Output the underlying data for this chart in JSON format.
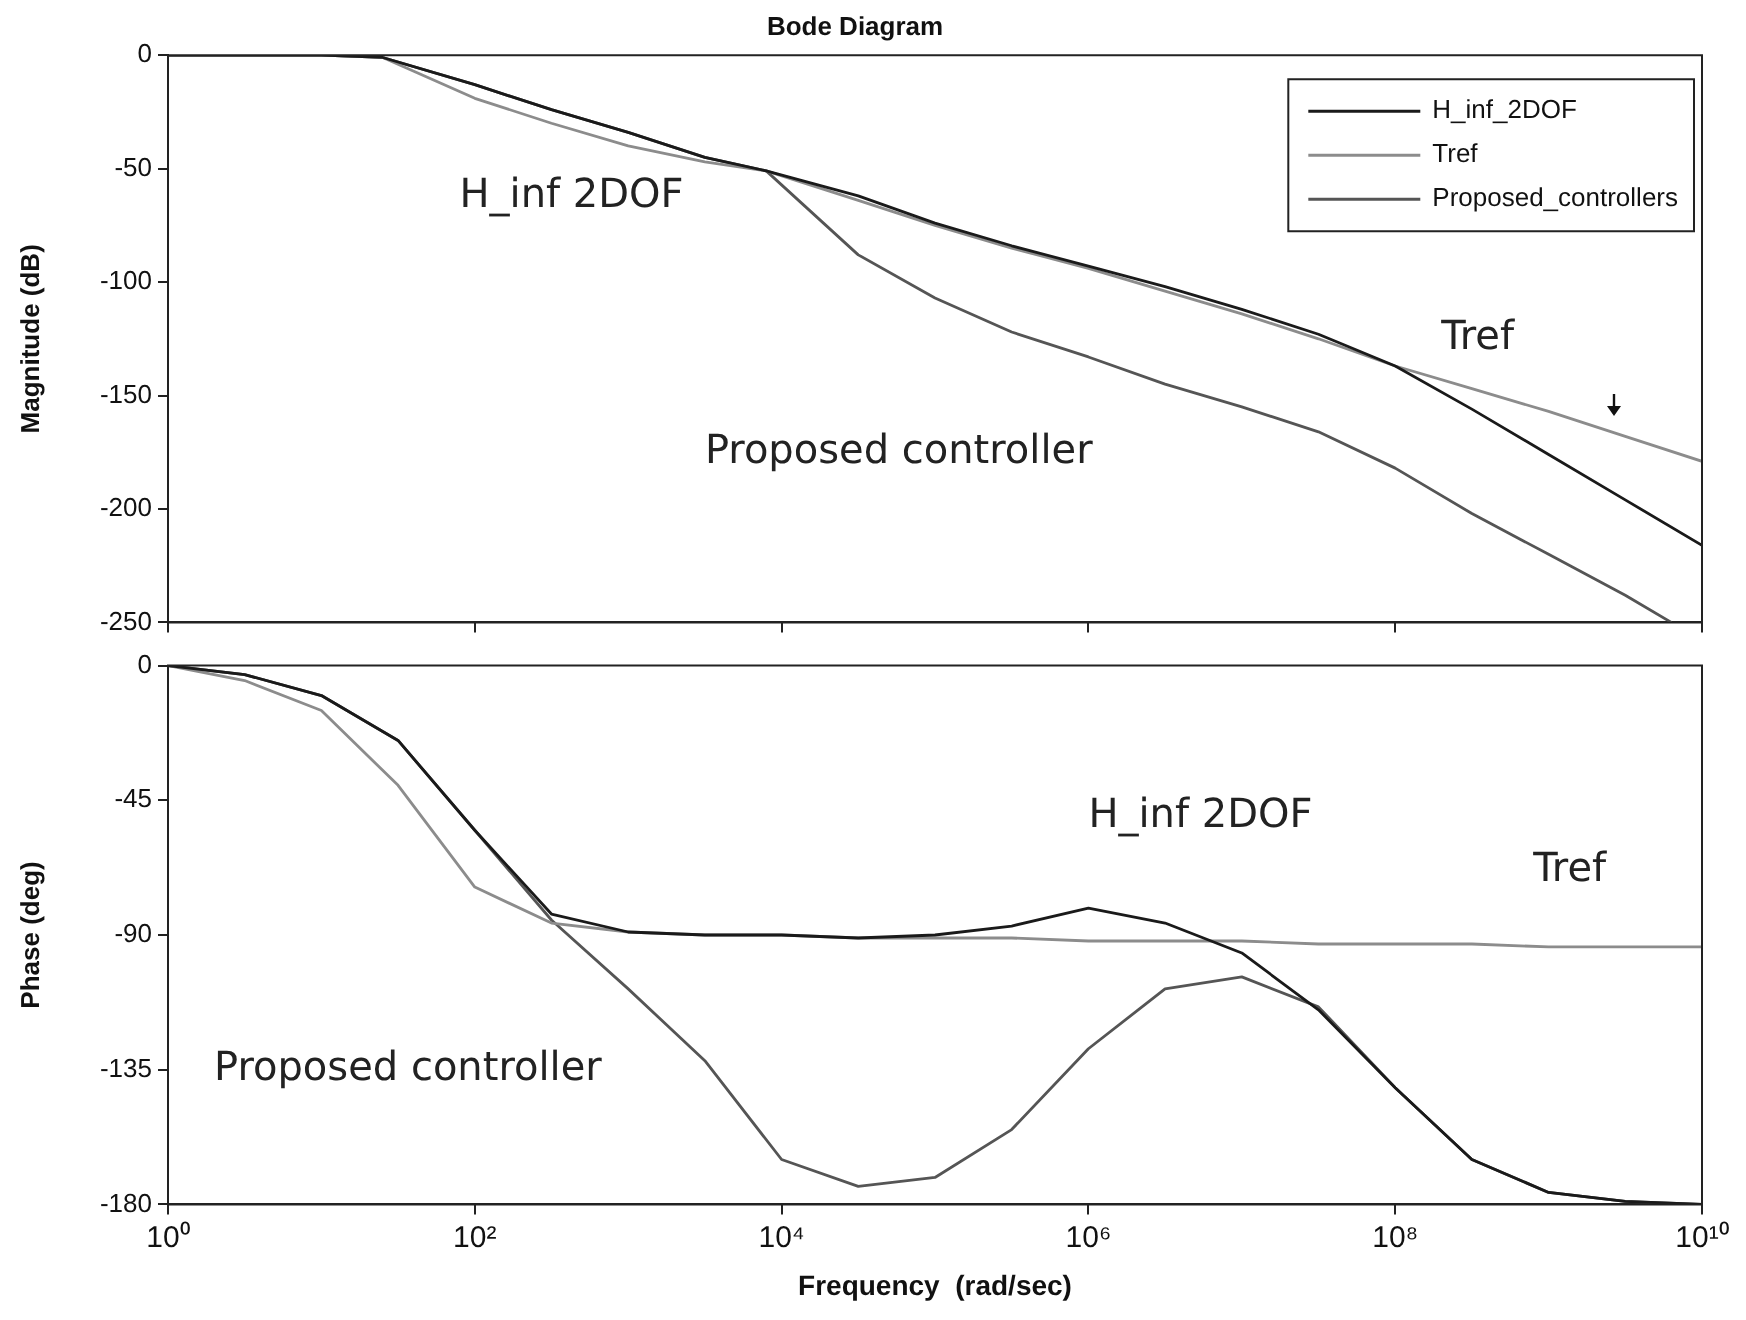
{
  "chart_data": [
    {
      "type": "line",
      "title": "Bode Diagram",
      "ylabel": "Magnitude (dB)",
      "log": "x",
      "grid": false,
      "legend": "top right",
      "marker": "none",
      "line_style": "solid",
      "tick_labels": "y",
      "x": [
        1,
        10,
        25.1,
        100,
        316,
        1000,
        3160,
        7940,
        31600,
        100000,
        316000,
        1000000,
        3160000,
        10000000,
        31600000,
        100000000,
        316000000,
        1000000000,
        3160000000,
        10000000000
      ],
      "xlim": [
        1,
        10000000000
      ],
      "xticks": [
        {
          "value": 1,
          "label": null
        },
        {
          "value": 100,
          "label": null
        },
        {
          "value": 10000,
          "label": null
        },
        {
          "value": 1000000,
          "label": null
        },
        {
          "value": 100000000,
          "label": null
        },
        {
          "value": 10000000000,
          "label": null
        }
      ],
      "ylim": [
        -250,
        0
      ],
      "yticks": [
        0,
        -50,
        -100,
        -150,
        -200,
        -250
      ],
      "series": [
        {
          "name": "H_inf_2DOF",
          "color": "#1a1a1a",
          "values": [
            0,
            0,
            -1,
            -13,
            -24,
            -34,
            -45,
            -51,
            -62,
            -74,
            -84,
            -93,
            -102,
            -112,
            -123,
            -137,
            -156,
            -176,
            -196,
            -216
          ]
        },
        {
          "name": "Tref",
          "color": "#8c8c8c",
          "values": [
            0,
            0,
            -1,
            -19,
            -30,
            -40,
            -47,
            -51,
            -64,
            -75,
            -85,
            -94,
            -104,
            -114,
            -125,
            -137,
            -147,
            -157,
            -168,
            -179
          ]
        },
        {
          "name": "Proposed_controllers",
          "color": "#555555",
          "x": [
            1,
            10,
            25.1,
            100,
            316,
            1000,
            3160,
            7940,
            31600,
            100000,
            316000,
            1000000,
            3160000,
            10000000,
            31600000,
            100000000,
            316000000,
            1000000000,
            3160000000,
            6310000000
          ],
          "values": [
            0,
            0,
            -1,
            -13,
            -24,
            -34,
            -45,
            -51,
            -88,
            -107,
            -122,
            -133,
            -145,
            -155,
            -166,
            -182,
            -202,
            -220,
            -238,
            -250
          ]
        }
      ],
      "annotations": [
        "H_inf 2DOF",
        "Tref",
        "Proposed controller"
      ]
    },
    {
      "type": "line",
      "xlabel": "Frequency  (rad/sec)",
      "ylabel": "Phase (deg)",
      "log": "x",
      "grid": false,
      "legend": false,
      "marker": "none",
      "line_style": "solid",
      "x": [
        1,
        3.16,
        10,
        31.6,
        100,
        316,
        1000,
        3160,
        10000,
        31600,
        100000,
        316000,
        1000000,
        3160000,
        10000000,
        31600000,
        100000000,
        316000000,
        1000000000,
        3160000000,
        10000000000
      ],
      "xlim": [
        1,
        10000000000
      ],
      "xticks": [
        {
          "value": 1,
          "label": "10⁰"
        },
        {
          "value": 100,
          "label": "10²"
        },
        {
          "value": 10000,
          "label": "10⁴"
        },
        {
          "value": 1000000,
          "label": "10⁶"
        },
        {
          "value": 100000000,
          "label": "10⁸"
        },
        {
          "value": 10000000000,
          "label": "10¹⁰"
        }
      ],
      "ylim": [
        -180,
        0
      ],
      "yticks": [
        0,
        -45,
        -90,
        -135,
        -180
      ],
      "series": [
        {
          "color": "#1a1a1a",
          "values": [
            0,
            -3,
            -10,
            -25,
            -55,
            -83,
            -89,
            -90,
            -90,
            -91,
            -90,
            -87,
            -81,
            -86,
            -96,
            -115,
            -141,
            -165,
            -176,
            -179,
            -180
          ]
        },
        {
          "color": "#8c8c8c",
          "values": [
            0,
            -5,
            -15,
            -40,
            -74,
            -86,
            -89,
            -90,
            -90,
            -91,
            -91,
            -91,
            -92,
            -92,
            -92,
            -93,
            -93,
            -93,
            -94,
            -94,
            -94
          ]
        },
        {
          "color": "#555555",
          "values": [
            0,
            -3,
            -10,
            -25,
            -55,
            -85,
            -108,
            -132,
            -165,
            -174,
            -171,
            -155,
            -128,
            -108,
            -104,
            -114,
            -141,
            -165,
            -176,
            -179,
            -180
          ]
        }
      ],
      "annotations": [
        "H_inf 2DOF",
        "Tref",
        "Proposed controller"
      ]
    }
  ]
}
